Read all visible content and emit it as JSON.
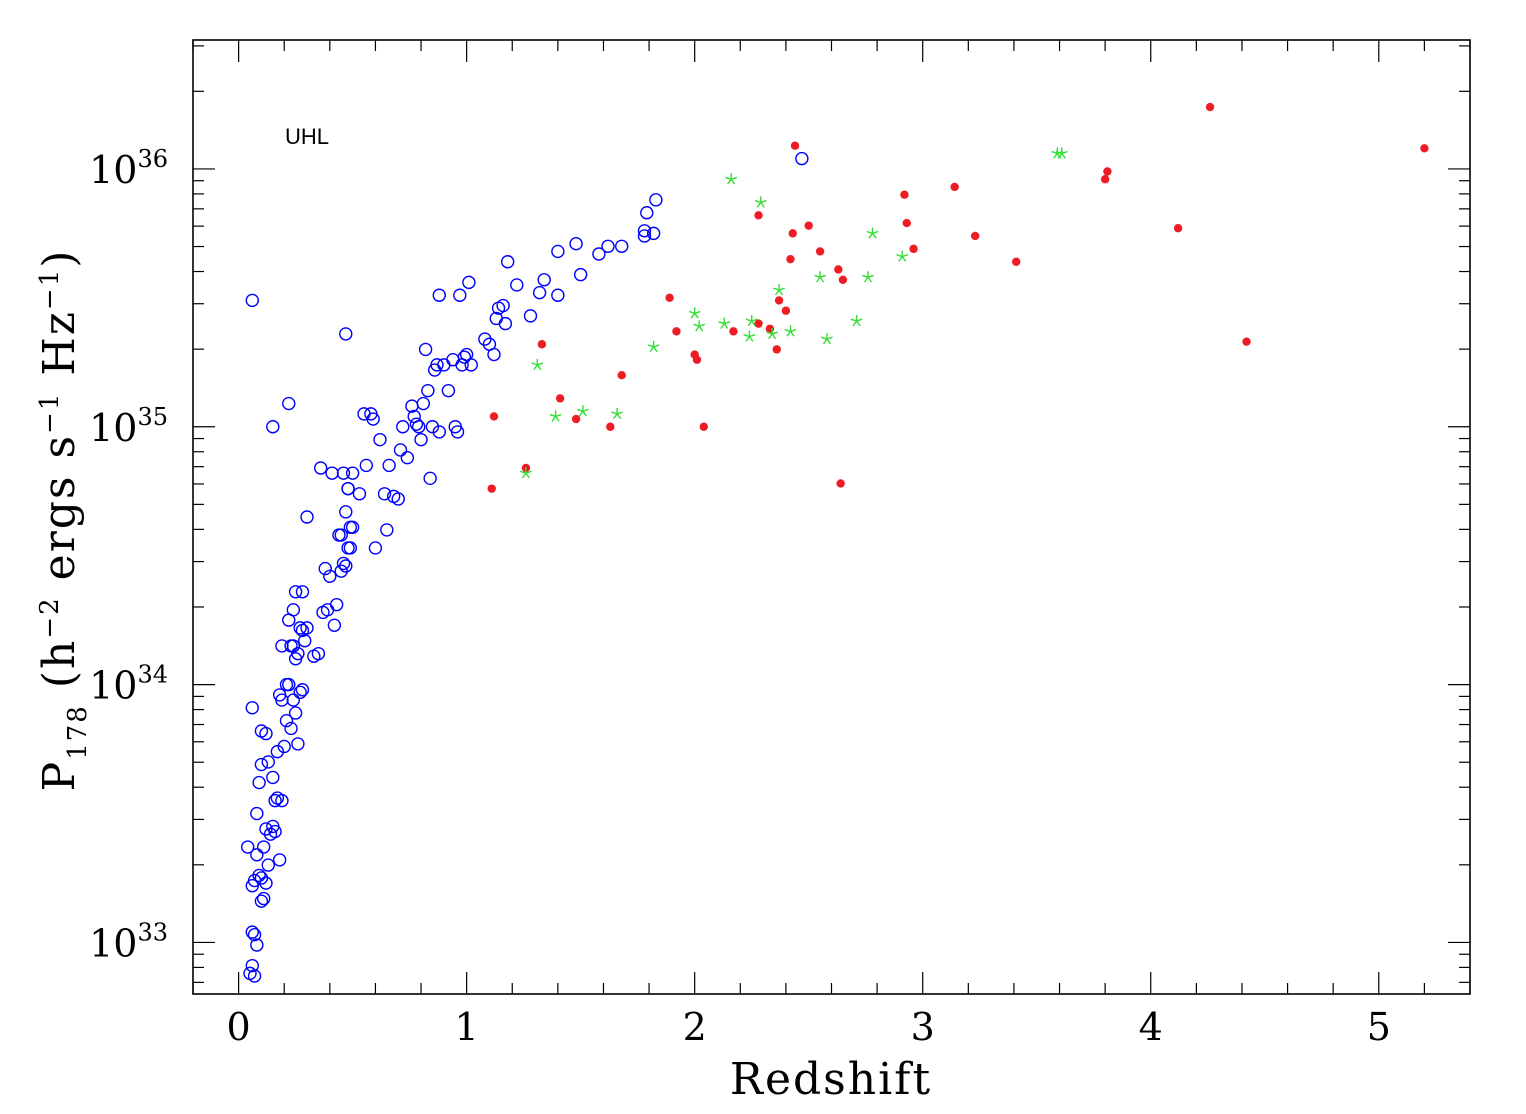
{
  "chart_data": {
    "type": "scatter",
    "title": "",
    "xlabel": "Redshift",
    "ylabel_parts": {
      "p": "P",
      "sub": "178",
      "open": " (h",
      "sup1": "−2",
      "mid1": " ergs s",
      "sup2": "−1",
      "mid2": " Hz",
      "sup3": "−1",
      "close": ")"
    },
    "xlim": [
      -0.2,
      5.4
    ],
    "ylim_log10": [
      32.8,
      36.5
    ],
    "yscale": "log",
    "x_ticks": [
      0,
      1,
      2,
      3,
      4,
      5
    ],
    "x_tick_labels": [
      "0",
      "1",
      "2",
      "3",
      "4",
      "5"
    ],
    "y_ticks_log10": [
      33,
      34,
      35,
      36
    ],
    "y_tick_labels": [
      {
        "base": "10",
        "exp": "33"
      },
      {
        "base": "10",
        "exp": "34"
      },
      {
        "base": "10",
        "exp": "35"
      },
      {
        "base": "10",
        "exp": "36"
      }
    ],
    "annotation": "UHL",
    "grid": false,
    "series": [
      {
        "marker": "open-circle",
        "color": "#0000ff",
        "points": [
          [
            0.06,
            35.49
          ],
          [
            0.04,
            33.37
          ],
          [
            0.05,
            32.88
          ],
          [
            0.06,
            32.91
          ],
          [
            0.07,
            32.87
          ],
          [
            0.08,
            32.99
          ],
          [
            0.06,
            33.04
          ],
          [
            0.07,
            33.03
          ],
          [
            0.06,
            33.22
          ],
          [
            0.07,
            33.24
          ],
          [
            0.08,
            33.34
          ],
          [
            0.09,
            33.26
          ],
          [
            0.1,
            33.16
          ],
          [
            0.11,
            33.17
          ],
          [
            0.1,
            33.25
          ],
          [
            0.12,
            33.23
          ],
          [
            0.11,
            33.37
          ],
          [
            0.12,
            33.44
          ],
          [
            0.13,
            33.3
          ],
          [
            0.14,
            33.42
          ],
          [
            0.15,
            33.45
          ],
          [
            0.16,
            33.43
          ],
          [
            0.17,
            33.56
          ],
          [
            0.18,
            33.32
          ],
          [
            0.19,
            33.55
          ],
          [
            0.08,
            33.5
          ],
          [
            0.09,
            33.62
          ],
          [
            0.1,
            33.69
          ],
          [
            0.12,
            33.81
          ],
          [
            0.13,
            33.7
          ],
          [
            0.15,
            33.64
          ],
          [
            0.16,
            33.55
          ],
          [
            0.17,
            33.74
          ],
          [
            0.18,
            33.96
          ],
          [
            0.19,
            33.94
          ],
          [
            0.2,
            33.76
          ],
          [
            0.21,
            33.86
          ],
          [
            0.22,
            34.0
          ],
          [
            0.23,
            33.83
          ],
          [
            0.24,
            33.94
          ],
          [
            0.25,
            33.89
          ],
          [
            0.26,
            33.77
          ],
          [
            0.27,
            33.97
          ],
          [
            0.28,
            33.98
          ],
          [
            0.06,
            33.91
          ],
          [
            0.1,
            33.82
          ],
          [
            0.19,
            34.15
          ],
          [
            0.21,
            34.0
          ],
          [
            0.23,
            34.15
          ],
          [
            0.24,
            34.15
          ],
          [
            0.25,
            34.1
          ],
          [
            0.26,
            34.12
          ],
          [
            0.27,
            34.22
          ],
          [
            0.28,
            34.21
          ],
          [
            0.29,
            34.17
          ],
          [
            0.3,
            34.22
          ],
          [
            0.24,
            34.29
          ],
          [
            0.22,
            34.25
          ],
          [
            0.25,
            34.36
          ],
          [
            0.28,
            34.36
          ],
          [
            0.3,
            34.65
          ],
          [
            0.33,
            34.11
          ],
          [
            0.35,
            34.12
          ],
          [
            0.36,
            34.84
          ],
          [
            0.37,
            34.28
          ],
          [
            0.38,
            34.45
          ],
          [
            0.39,
            34.29
          ],
          [
            0.4,
            34.42
          ],
          [
            0.41,
            34.82
          ],
          [
            0.42,
            34.23
          ],
          [
            0.43,
            34.31
          ],
          [
            0.44,
            34.58
          ],
          [
            0.45,
            34.44
          ],
          [
            0.45,
            34.58
          ],
          [
            0.46,
            34.47
          ],
          [
            0.47,
            34.46
          ],
          [
            0.48,
            34.53
          ],
          [
            0.48,
            34.76
          ],
          [
            0.49,
            34.61
          ],
          [
            0.5,
            34.61
          ],
          [
            0.46,
            34.82
          ],
          [
            0.47,
            34.67
          ],
          [
            0.48,
            34.76
          ],
          [
            0.49,
            34.53
          ],
          [
            0.5,
            34.82
          ],
          [
            0.53,
            34.74
          ],
          [
            0.47,
            35.36
          ],
          [
            0.15,
            35.0
          ],
          [
            0.22,
            35.09
          ],
          [
            0.55,
            35.05
          ],
          [
            0.56,
            34.85
          ],
          [
            0.58,
            35.05
          ],
          [
            0.59,
            35.03
          ],
          [
            0.6,
            34.53
          ],
          [
            0.62,
            34.95
          ],
          [
            0.64,
            34.74
          ],
          [
            0.65,
            34.6
          ],
          [
            0.66,
            34.85
          ],
          [
            0.68,
            34.73
          ],
          [
            0.7,
            34.72
          ],
          [
            0.71,
            34.91
          ],
          [
            0.72,
            35.0
          ],
          [
            0.74,
            34.88
          ],
          [
            0.76,
            35.08
          ],
          [
            0.77,
            35.04
          ],
          [
            0.78,
            35.01
          ],
          [
            0.79,
            35.0
          ],
          [
            0.8,
            34.95
          ],
          [
            0.81,
            35.09
          ],
          [
            0.82,
            35.3
          ],
          [
            0.83,
            35.14
          ],
          [
            0.84,
            34.8
          ],
          [
            0.85,
            35.0
          ],
          [
            0.86,
            35.22
          ],
          [
            0.87,
            35.24
          ],
          [
            0.88,
            34.98
          ],
          [
            0.9,
            35.24
          ],
          [
            0.92,
            35.14
          ],
          [
            0.94,
            35.26
          ],
          [
            0.95,
            35.0
          ],
          [
            0.96,
            34.98
          ],
          [
            0.97,
            35.51
          ],
          [
            0.98,
            35.24
          ],
          [
            0.99,
            35.27
          ],
          [
            1.0,
            35.28
          ],
          [
            1.01,
            35.56
          ],
          [
            1.02,
            35.24
          ],
          [
            0.88,
            35.51
          ],
          [
            1.08,
            35.34
          ],
          [
            1.1,
            35.32
          ],
          [
            1.12,
            35.28
          ],
          [
            1.13,
            35.42
          ],
          [
            1.14,
            35.46
          ],
          [
            1.16,
            35.47
          ],
          [
            1.17,
            35.4
          ],
          [
            1.18,
            35.64
          ],
          [
            1.22,
            35.55
          ],
          [
            1.28,
            35.43
          ],
          [
            1.32,
            35.52
          ],
          [
            1.34,
            35.57
          ],
          [
            1.4,
            35.51
          ],
          [
            1.4,
            35.68
          ],
          [
            1.48,
            35.71
          ],
          [
            1.5,
            35.59
          ],
          [
            1.58,
            35.67
          ],
          [
            1.62,
            35.7
          ],
          [
            1.68,
            35.7
          ],
          [
            1.78,
            35.74
          ],
          [
            1.78,
            35.76
          ],
          [
            1.79,
            35.83
          ],
          [
            1.82,
            35.75
          ],
          [
            1.83,
            35.88
          ],
          [
            2.47,
            36.04
          ]
        ]
      },
      {
        "marker": "filled-circle",
        "color": "#ee1c25",
        "points": [
          [
            1.11,
            34.76
          ],
          [
            1.12,
            35.04
          ],
          [
            1.26,
            34.84
          ],
          [
            1.33,
            35.32
          ],
          [
            1.41,
            35.11
          ],
          [
            1.48,
            35.03
          ],
          [
            1.63,
            35.0
          ],
          [
            1.68,
            35.2
          ],
          [
            1.89,
            35.5
          ],
          [
            1.92,
            35.37
          ],
          [
            2.0,
            35.28
          ],
          [
            2.01,
            35.26
          ],
          [
            2.04,
            35.0
          ],
          [
            2.17,
            35.37
          ],
          [
            2.28,
            35.82
          ],
          [
            2.28,
            35.4
          ],
          [
            2.33,
            35.38
          ],
          [
            2.36,
            35.3
          ],
          [
            2.37,
            35.49
          ],
          [
            2.4,
            35.45
          ],
          [
            2.42,
            35.65
          ],
          [
            2.43,
            35.75
          ],
          [
            2.44,
            36.09
          ],
          [
            2.5,
            35.78
          ],
          [
            2.55,
            35.68
          ],
          [
            2.63,
            35.61
          ],
          [
            2.64,
            34.78
          ],
          [
            2.65,
            35.57
          ],
          [
            2.92,
            35.9
          ],
          [
            2.93,
            35.79
          ],
          [
            2.96,
            35.69
          ],
          [
            3.14,
            35.93
          ],
          [
            3.23,
            35.74
          ],
          [
            3.41,
            35.64
          ],
          [
            3.8,
            35.96
          ],
          [
            3.81,
            35.99
          ],
          [
            4.12,
            35.77
          ],
          [
            4.26,
            36.24
          ],
          [
            4.42,
            35.33
          ],
          [
            5.2,
            36.08
          ]
        ]
      },
      {
        "marker": "star",
        "color": "#33dd33",
        "points": [
          [
            1.26,
            34.82
          ],
          [
            1.31,
            35.24
          ],
          [
            1.39,
            35.04
          ],
          [
            1.51,
            35.06
          ],
          [
            1.66,
            35.05
          ],
          [
            1.82,
            35.31
          ],
          [
            2.0,
            35.44
          ],
          [
            2.02,
            35.39
          ],
          [
            2.13,
            35.4
          ],
          [
            2.16,
            35.96
          ],
          [
            2.24,
            35.35
          ],
          [
            2.25,
            35.41
          ],
          [
            2.29,
            35.87
          ],
          [
            2.34,
            35.36
          ],
          [
            2.37,
            35.53
          ],
          [
            2.42,
            35.37
          ],
          [
            2.55,
            35.58
          ],
          [
            2.58,
            35.34
          ],
          [
            2.71,
            35.41
          ],
          [
            2.76,
            35.58
          ],
          [
            2.78,
            35.75
          ],
          [
            2.91,
            35.66
          ],
          [
            3.59,
            36.06
          ],
          [
            3.61,
            36.06
          ]
        ]
      }
    ]
  }
}
